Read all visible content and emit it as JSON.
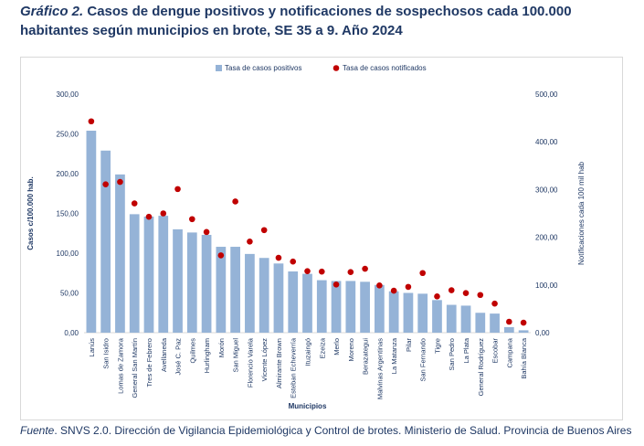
{
  "header": {
    "title_lead": "Gráfico 2.",
    "title_text": "Casos de dengue positivos y notificaciones de sospechosos cada 100.000 habitantes según municipios en brote, SE 35 a 9. Año 2024"
  },
  "footer": {
    "source_lead": "Fuente",
    "source_text": ". SNVS 2.0. Dirección de Vigilancia Epidemiológica y Control de brotes. Ministerio de Salud. Provincia de Buenos Aires"
  },
  "colors": {
    "bar": "#95b3d7",
    "dot": "#c00000",
    "axis": "#1f3864",
    "grid": "#d9d9d9"
  },
  "chart_data": {
    "type": "bar",
    "title": "",
    "xlabel": "Municipios",
    "ylabel": "Casos c/100.000 hab.",
    "y2label": "Notificaciones cada 100 mil hab",
    "ylim": [
      0,
      300
    ],
    "y2lim": [
      0,
      500
    ],
    "yticks": [
      "0,00",
      "50,00",
      "100,00",
      "150,00",
      "200,00",
      "250,00",
      "300,00"
    ],
    "y2ticks": [
      "0,00",
      "100,00",
      "200,00",
      "300,00",
      "400,00",
      "500,00"
    ],
    "legend_position": "top",
    "categories": [
      "Lanús",
      "San Isidro",
      "Lomas de Zamora",
      "General San Martín",
      "Tres de Febrero",
      "Avellaneda",
      "José C. Paz",
      "Quilmes",
      "Hurlingham",
      "Morón",
      "San Miguel",
      "Florencio Varela",
      "Vicente López",
      "Almirante Brown",
      "Esteban Echeverría",
      "Ituzaingó",
      "Ezeiza",
      "Merlo",
      "Moreno",
      "Berazategui",
      "Malvinas Argentinas",
      "La Matanza",
      "Pilar",
      "San Fernando",
      "Tigre",
      "San Pedro",
      "La Plata",
      "General Rodríguez",
      "Escobar",
      "Campana",
      "Bahía Blanca"
    ],
    "series": [
      {
        "name": "Tasa de casos positivos",
        "type": "bar",
        "axis": "left",
        "values": [
          254,
          229,
          199,
          149,
          146,
          147,
          130,
          126,
          123,
          108,
          108,
          99,
          94,
          87,
          77,
          74,
          66,
          65,
          65,
          64,
          60,
          52,
          50,
          49,
          41,
          35,
          34,
          25,
          24,
          7,
          3
        ]
      },
      {
        "name": "Tasa de casos notificados",
        "type": "scatter",
        "axis": "right",
        "values": [
          443,
          311,
          316,
          271,
          243,
          250,
          301,
          238,
          211,
          162,
          275,
          191,
          215,
          157,
          149,
          129,
          128,
          101,
          127,
          134,
          99,
          88,
          96,
          125,
          76,
          89,
          83,
          79,
          61,
          23,
          21
        ]
      }
    ]
  }
}
